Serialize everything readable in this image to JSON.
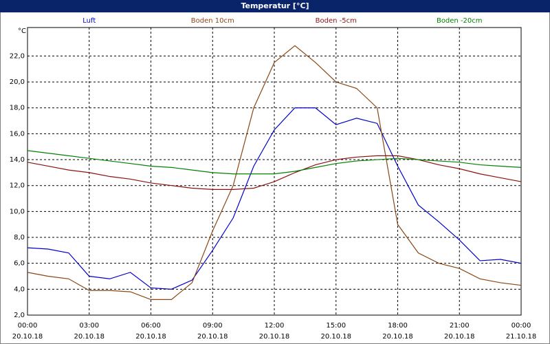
{
  "chart_data": {
    "type": "line",
    "title": "Temperatur [°C]",
    "y_unit": "°C",
    "x": [
      0,
      1,
      2,
      3,
      4,
      5,
      6,
      7,
      8,
      9,
      10,
      11,
      12,
      13,
      14,
      15,
      16,
      17,
      18,
      19,
      20,
      21,
      22,
      23,
      24
    ],
    "xlim": [
      0,
      24
    ],
    "xticks": [
      {
        "value": 0,
        "label": "00:00",
        "date": "20.10.18"
      },
      {
        "value": 3,
        "label": "03:00",
        "date": "20.10.18"
      },
      {
        "value": 6,
        "label": "06:00",
        "date": "20.10.18"
      },
      {
        "value": 9,
        "label": "09:00",
        "date": "20.10.18"
      },
      {
        "value": 12,
        "label": "12:00",
        "date": "20.10.18"
      },
      {
        "value": 15,
        "label": "15:00",
        "date": "20.10.18"
      },
      {
        "value": 18,
        "label": "18:00",
        "date": "20.10.18"
      },
      {
        "value": 21,
        "label": "21:00",
        "date": "20.10.18"
      },
      {
        "value": 24,
        "label": "00:00",
        "date": "21.10.18"
      }
    ],
    "ylim": [
      2,
      24.2
    ],
    "yticks": [
      {
        "value": 2,
        "label": "2,0"
      },
      {
        "value": 4,
        "label": "4,0"
      },
      {
        "value": 6,
        "label": "6,0"
      },
      {
        "value": 8,
        "label": "8,0"
      },
      {
        "value": 10,
        "label": "10,0"
      },
      {
        "value": 12,
        "label": "12,0"
      },
      {
        "value": 14,
        "label": "14,0"
      },
      {
        "value": 16,
        "label": "16,0"
      },
      {
        "value": 18,
        "label": "18,0"
      },
      {
        "value": 20,
        "label": "20,0"
      },
      {
        "value": 22,
        "label": "22,0"
      }
    ],
    "grid": true,
    "series": [
      {
        "name": "Luft",
        "color": "#0000cc",
        "values": [
          7.2,
          7.1,
          6.8,
          5.0,
          4.8,
          5.3,
          4.1,
          4.0,
          4.7,
          7.0,
          9.5,
          13.5,
          16.3,
          18.0,
          18.0,
          16.7,
          17.2,
          16.8,
          13.5,
          10.5,
          9.2,
          7.8,
          6.2,
          6.3,
          6.0
        ]
      },
      {
        "name": "Boden 10cm",
        "color": "#8b4513",
        "values": [
          5.3,
          5.0,
          4.8,
          3.9,
          3.9,
          3.8,
          3.2,
          3.2,
          4.5,
          8.5,
          12.0,
          18.0,
          21.5,
          22.8,
          21.5,
          20.0,
          19.5,
          18.0,
          9.0,
          6.8,
          6.0,
          5.6,
          4.8,
          4.5,
          4.3
        ]
      },
      {
        "name": "Boden -5cm",
        "color": "#8b1010",
        "values": [
          13.8,
          13.5,
          13.2,
          13.0,
          12.7,
          12.5,
          12.2,
          12.0,
          11.8,
          11.7,
          11.7,
          11.8,
          12.3,
          13.0,
          13.6,
          14.0,
          14.2,
          14.3,
          14.3,
          14.0,
          13.6,
          13.3,
          12.9,
          12.6,
          12.3
        ]
      },
      {
        "name": "Boden -20cm",
        "color": "#008000",
        "values": [
          14.7,
          14.5,
          14.3,
          14.1,
          13.9,
          13.7,
          13.5,
          13.4,
          13.2,
          13.0,
          12.9,
          12.9,
          12.9,
          13.1,
          13.4,
          13.7,
          13.9,
          14.0,
          14.1,
          14.0,
          13.9,
          13.8,
          13.6,
          13.5,
          13.4
        ]
      }
    ]
  }
}
